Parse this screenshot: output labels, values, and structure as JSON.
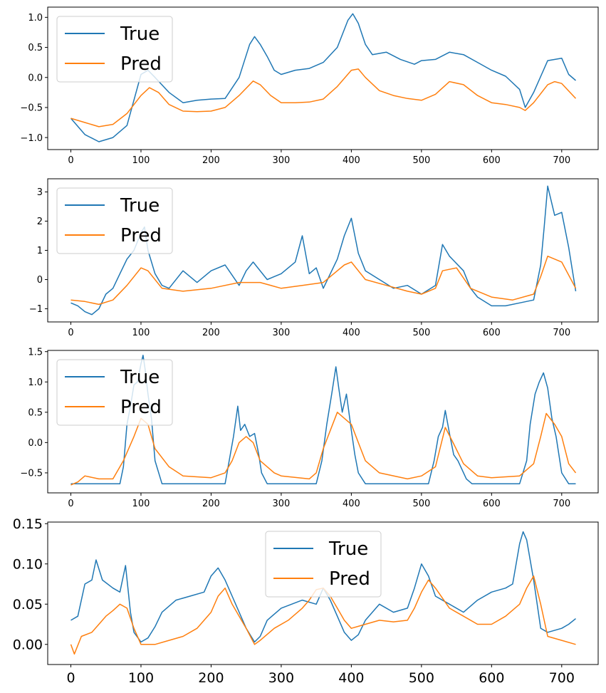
{
  "colors": {
    "true": "#1f77b4",
    "pred": "#ff7f0e"
  },
  "legend": {
    "true_label": "True",
    "pred_label": "Pred"
  },
  "chart_data": [
    {
      "type": "line",
      "xlim": [
        -33,
        752
      ],
      "ylim": [
        -1.2,
        1.17
      ],
      "xticks": [
        0,
        100,
        200,
        300,
        400,
        500,
        600,
        700
      ],
      "xtick_labels": [
        "0",
        "100",
        "200",
        "300",
        "400",
        "500",
        "600",
        "700"
      ],
      "yticks": [
        -1.0,
        -0.5,
        0.0,
        0.5,
        1.0
      ],
      "ytick_labels": [
        "−1.0",
        "−0.5",
        "0.0",
        "0.5",
        "1.0"
      ],
      "legend_position": "upper-left",
      "series": [
        {
          "name": "True",
          "x": [
            0,
            20,
            40,
            60,
            80,
            100,
            110,
            120,
            140,
            160,
            180,
            200,
            220,
            240,
            255,
            262,
            270,
            280,
            290,
            300,
            320,
            340,
            360,
            380,
            395,
            402,
            410,
            420,
            430,
            450,
            470,
            490,
            500,
            520,
            540,
            560,
            580,
            600,
            620,
            640,
            648,
            660,
            680,
            700,
            710,
            720
          ],
          "y": [
            -0.68,
            -0.95,
            -1.07,
            -1.0,
            -0.8,
            0.05,
            0.12,
            0.0,
            -0.25,
            -0.42,
            -0.38,
            -0.36,
            -0.35,
            0.0,
            0.55,
            0.68,
            0.55,
            0.35,
            0.12,
            0.05,
            0.12,
            0.15,
            0.25,
            0.5,
            0.95,
            1.06,
            0.9,
            0.55,
            0.38,
            0.42,
            0.3,
            0.22,
            0.28,
            0.3,
            0.42,
            0.38,
            0.25,
            0.12,
            0.02,
            -0.2,
            -0.5,
            -0.25,
            0.28,
            0.32,
            0.05,
            -0.05
          ]
        },
        {
          "name": "Pred",
          "x": [
            0,
            20,
            40,
            60,
            80,
            100,
            112,
            125,
            140,
            160,
            180,
            200,
            220,
            240,
            260,
            270,
            285,
            300,
            320,
            340,
            360,
            380,
            400,
            410,
            420,
            440,
            460,
            480,
            500,
            520,
            540,
            560,
            580,
            600,
            620,
            640,
            648,
            660,
            680,
            690,
            700,
            720
          ],
          "y": [
            -0.68,
            -0.75,
            -0.82,
            -0.78,
            -0.6,
            -0.3,
            -0.17,
            -0.25,
            -0.45,
            -0.56,
            -0.57,
            -0.56,
            -0.5,
            -0.3,
            -0.06,
            -0.12,
            -0.3,
            -0.42,
            -0.42,
            -0.41,
            -0.36,
            -0.15,
            0.12,
            0.14,
            0.0,
            -0.22,
            -0.3,
            -0.35,
            -0.38,
            -0.28,
            -0.07,
            -0.12,
            -0.3,
            -0.42,
            -0.45,
            -0.5,
            -0.55,
            -0.42,
            -0.12,
            -0.07,
            -0.1,
            -0.35
          ]
        }
      ]
    },
    {
      "type": "line",
      "xlim": [
        -33,
        752
      ],
      "ylim": [
        -1.45,
        3.45
      ],
      "xticks": [
        0,
        100,
        200,
        300,
        400,
        500,
        600,
        700
      ],
      "xtick_labels": [
        "0",
        "100",
        "200",
        "300",
        "400",
        "500",
        "600",
        "700"
      ],
      "yticks": [
        -1,
        0,
        1,
        2,
        3
      ],
      "ytick_labels": [
        "−1",
        "0",
        "1",
        "2",
        "3"
      ],
      "legend_position": "upper-left",
      "series": [
        {
          "name": "True",
          "x": [
            0,
            10,
            20,
            30,
            40,
            50,
            60,
            70,
            80,
            90,
            100,
            105,
            110,
            120,
            130,
            140,
            160,
            180,
            200,
            220,
            240,
            250,
            260,
            280,
            300,
            320,
            330,
            340,
            350,
            360,
            380,
            390,
            400,
            410,
            420,
            440,
            460,
            480,
            500,
            520,
            530,
            540,
            560,
            570,
            580,
            600,
            620,
            640,
            660,
            670,
            675,
            680,
            690,
            700,
            710,
            720
          ],
          "y": [
            -0.8,
            -0.9,
            -1.1,
            -1.2,
            -1.0,
            -0.5,
            -0.3,
            0.2,
            0.7,
            1.0,
            1.6,
            1.8,
            1.0,
            0.2,
            -0.2,
            -0.3,
            0.3,
            -0.1,
            0.3,
            0.5,
            -0.2,
            0.3,
            0.6,
            0.0,
            0.2,
            0.6,
            1.5,
            0.2,
            0.4,
            -0.3,
            0.7,
            1.5,
            2.1,
            0.9,
            0.3,
            0.0,
            -0.3,
            -0.2,
            -0.5,
            -0.2,
            1.2,
            0.8,
            0.3,
            -0.3,
            -0.6,
            -0.9,
            -0.9,
            -0.8,
            -0.7,
            0.5,
            1.8,
            3.2,
            2.2,
            2.3,
            1.1,
            -0.4
          ]
        },
        {
          "name": "Pred",
          "x": [
            0,
            20,
            40,
            60,
            80,
            100,
            110,
            130,
            160,
            200,
            240,
            270,
            300,
            330,
            360,
            390,
            400,
            420,
            450,
            480,
            500,
            520,
            530,
            550,
            570,
            600,
            630,
            660,
            670,
            680,
            700,
            720
          ],
          "y": [
            -0.7,
            -0.75,
            -0.85,
            -0.7,
            -0.2,
            0.4,
            0.3,
            -0.3,
            -0.4,
            -0.3,
            -0.1,
            -0.1,
            -0.3,
            -0.2,
            -0.1,
            0.5,
            0.6,
            0.0,
            -0.2,
            -0.4,
            -0.5,
            -0.3,
            0.3,
            0.4,
            -0.3,
            -0.6,
            -0.7,
            -0.5,
            0.1,
            0.8,
            0.6,
            -0.3
          ]
        }
      ]
    },
    {
      "type": "line",
      "xlim": [
        -33,
        752
      ],
      "ylim": [
        -0.83,
        1.52
      ],
      "xticks": [
        0,
        100,
        200,
        300,
        400,
        500,
        600,
        700
      ],
      "xtick_labels": [
        "0",
        "100",
        "200",
        "300",
        "400",
        "500",
        "600",
        "700"
      ],
      "yticks": [
        -0.5,
        0.0,
        0.5,
        1.0,
        1.5
      ],
      "ytick_labels": [
        "−0.5",
        "0.0",
        "0.5",
        "1.0",
        "1.5"
      ],
      "legend_position": "upper-left",
      "series": [
        {
          "name": "True",
          "x": [
            0,
            20,
            40,
            60,
            70,
            75,
            80,
            85,
            90,
            95,
            100,
            103,
            106,
            110,
            115,
            120,
            130,
            140,
            160,
            200,
            220,
            225,
            232,
            238,
            242,
            248,
            255,
            262,
            268,
            272,
            280,
            300,
            340,
            350,
            358,
            365,
            372,
            378,
            382,
            387,
            393,
            400,
            405,
            410,
            420,
            430,
            500,
            510,
            518,
            524,
            530,
            534,
            540,
            546,
            552,
            558,
            564,
            572,
            580,
            600,
            640,
            650,
            655,
            662,
            668,
            674,
            680,
            686,
            692,
            700,
            710,
            720
          ],
          "y": [
            -0.68,
            -0.68,
            -0.68,
            -0.68,
            -0.68,
            -0.4,
            0.3,
            0.6,
            0.95,
            1.0,
            1.3,
            1.44,
            1.2,
            0.8,
            0.4,
            -0.3,
            -0.68,
            -0.68,
            -0.68,
            -0.68,
            -0.68,
            -0.35,
            0.1,
            0.6,
            0.2,
            0.3,
            0.1,
            0.15,
            -0.2,
            -0.5,
            -0.68,
            -0.68,
            -0.68,
            -0.68,
            -0.3,
            0.3,
            0.8,
            1.25,
            0.9,
            0.5,
            0.8,
            0.2,
            -0.2,
            -0.5,
            -0.68,
            -0.68,
            -0.68,
            -0.68,
            -0.3,
            0.1,
            0.25,
            0.53,
            0.15,
            -0.2,
            -0.3,
            -0.45,
            -0.6,
            -0.68,
            -0.68,
            -0.68,
            -0.68,
            -0.3,
            0.3,
            0.8,
            1.0,
            1.15,
            0.9,
            0.4,
            0.1,
            -0.5,
            -0.68,
            -0.68
          ]
        },
        {
          "name": "Pred",
          "x": [
            0,
            10,
            20,
            40,
            60,
            75,
            90,
            100,
            110,
            120,
            140,
            160,
            200,
            220,
            230,
            240,
            250,
            260,
            270,
            290,
            300,
            340,
            350,
            360,
            380,
            390,
            400,
            410,
            420,
            440,
            480,
            500,
            520,
            534,
            545,
            560,
            580,
            600,
            640,
            660,
            670,
            678,
            690,
            700,
            710,
            720
          ],
          "y": [
            -0.7,
            -0.65,
            -0.55,
            -0.6,
            -0.6,
            -0.3,
            0.1,
            0.4,
            0.3,
            -0.1,
            -0.4,
            -0.55,
            -0.58,
            -0.5,
            -0.3,
            0.0,
            0.1,
            0.0,
            -0.3,
            -0.5,
            -0.55,
            -0.6,
            -0.5,
            -0.1,
            0.5,
            0.4,
            0.3,
            0.0,
            -0.3,
            -0.5,
            -0.6,
            -0.55,
            -0.4,
            0.25,
            0.0,
            -0.35,
            -0.55,
            -0.58,
            -0.55,
            -0.35,
            0.1,
            0.48,
            0.3,
            0.1,
            -0.35,
            -0.5
          ]
        }
      ]
    },
    {
      "type": "line",
      "xlim": [
        -33,
        752
      ],
      "ylim": [
        -0.025,
        0.152
      ],
      "xticks": [
        0,
        100,
        200,
        300,
        400,
        500,
        600,
        700
      ],
      "xtick_labels": [
        "0",
        "100",
        "200",
        "300",
        "400",
        "500",
        "600",
        "700"
      ],
      "yticks": [
        0.0,
        0.05,
        0.1,
        0.15
      ],
      "ytick_labels": [
        "0.00",
        "0.05",
        "0.10",
        "0.15"
      ],
      "legend_position": "upper-center",
      "series": [
        {
          "name": "True",
          "x": [
            0,
            10,
            20,
            30,
            36,
            45,
            60,
            70,
            78,
            85,
            90,
            100,
            110,
            120,
            130,
            150,
            170,
            190,
            200,
            210,
            220,
            230,
            250,
            262,
            270,
            280,
            300,
            330,
            350,
            360,
            370,
            380,
            390,
            400,
            410,
            420,
            440,
            460,
            480,
            490,
            500,
            510,
            520,
            540,
            560,
            580,
            600,
            620,
            630,
            640,
            645,
            650,
            660,
            670,
            680,
            700,
            710,
            720
          ],
          "y": [
            0.03,
            0.035,
            0.075,
            0.08,
            0.105,
            0.08,
            0.07,
            0.065,
            0.098,
            0.04,
            0.015,
            0.003,
            0.008,
            0.022,
            0.04,
            0.055,
            0.06,
            0.065,
            0.085,
            0.095,
            0.08,
            0.06,
            0.02,
            0.003,
            0.01,
            0.03,
            0.045,
            0.055,
            0.05,
            0.07,
            0.055,
            0.035,
            0.015,
            0.005,
            0.012,
            0.03,
            0.05,
            0.04,
            0.045,
            0.07,
            0.1,
            0.085,
            0.06,
            0.05,
            0.04,
            0.055,
            0.065,
            0.07,
            0.075,
            0.125,
            0.14,
            0.13,
            0.08,
            0.02,
            0.015,
            0.02,
            0.025,
            0.032
          ]
        },
        {
          "name": "Pred",
          "x": [
            0,
            5,
            15,
            30,
            40,
            50,
            60,
            70,
            80,
            90,
            100,
            120,
            140,
            160,
            180,
            200,
            210,
            220,
            230,
            250,
            262,
            270,
            290,
            310,
            330,
            340,
            350,
            360,
            370,
            380,
            390,
            400,
            420,
            440,
            460,
            480,
            490,
            500,
            510,
            520,
            540,
            560,
            580,
            600,
            620,
            640,
            650,
            660,
            670,
            680,
            700,
            720
          ],
          "y": [
            0.0,
            -0.012,
            0.01,
            0.015,
            0.025,
            0.035,
            0.042,
            0.05,
            0.045,
            0.02,
            0.0,
            0.0,
            0.005,
            0.01,
            0.02,
            0.04,
            0.06,
            0.07,
            0.05,
            0.02,
            0.0,
            0.005,
            0.02,
            0.03,
            0.045,
            0.055,
            0.068,
            0.07,
            0.06,
            0.045,
            0.03,
            0.02,
            0.025,
            0.03,
            0.028,
            0.03,
            0.045,
            0.065,
            0.08,
            0.07,
            0.045,
            0.035,
            0.025,
            0.025,
            0.035,
            0.05,
            0.07,
            0.085,
            0.05,
            0.01,
            0.005,
            0.0
          ]
        }
      ]
    }
  ]
}
